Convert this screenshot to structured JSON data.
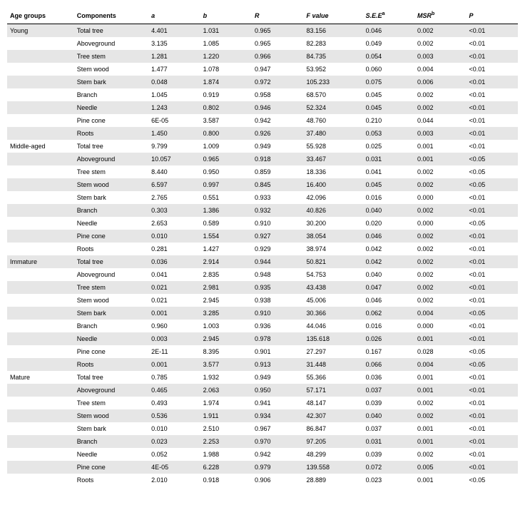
{
  "headers": {
    "age": "Age groups",
    "comp": "Components",
    "a": "a",
    "b": "b",
    "r": "R",
    "f": "F value",
    "see": "S.E.E",
    "see_sup": "a",
    "msr": "MSR",
    "msr_sup": "b",
    "p": "P"
  },
  "groups": [
    {
      "name": "Young",
      "rows": [
        {
          "comp": "Total tree",
          "a": "4.401",
          "b": "1.031",
          "r": "0.965",
          "f": "83.156",
          "see": "0.046",
          "msr": "0.002",
          "p": "<0.01"
        },
        {
          "comp": "Aboveground",
          "a": "3.135",
          "b": "1.085",
          "r": "0.965",
          "f": "82.283",
          "see": "0.049",
          "msr": "0.002",
          "p": "<0.01"
        },
        {
          "comp": "Tree stem",
          "a": "1.281",
          "b": "1.220",
          "r": "0.966",
          "f": "84.735",
          "see": "0.054",
          "msr": "0.003",
          "p": "<0.01"
        },
        {
          "comp": "Stem wood",
          "a": "1.477",
          "b": "1.078",
          "r": "0.947",
          "f": "53.952",
          "see": "0.060",
          "msr": "0.004",
          "p": "<0.01"
        },
        {
          "comp": "Stem bark",
          "a": "0.048",
          "b": "1.874",
          "r": "0.972",
          "f": "105.233",
          "see": "0.075",
          "msr": "0.006",
          "p": "<0.01"
        },
        {
          "comp": "Branch",
          "a": "1.045",
          "b": "0.919",
          "r": "0.958",
          "f": "68.570",
          "see": "0.045",
          "msr": "0.002",
          "p": "<0.01"
        },
        {
          "comp": "Needle",
          "a": "1.243",
          "b": "0.802",
          "r": "0.946",
          "f": "52.324",
          "see": "0.045",
          "msr": "0.002",
          "p": "<0.01"
        },
        {
          "comp": "Pine cone",
          "a": "6E-05",
          "b": "3.587",
          "r": "0.942",
          "f": "48.760",
          "see": "0.210",
          "msr": "0.044",
          "p": "<0.01"
        },
        {
          "comp": "Roots",
          "a": "1.450",
          "b": "0.800",
          "r": "0.926",
          "f": "37.480",
          "see": "0.053",
          "msr": "0.003",
          "p": "<0.01"
        }
      ]
    },
    {
      "name": "Middle-aged",
      "rows": [
        {
          "comp": "Total tree",
          "a": "9.799",
          "b": "1.009",
          "r": "0.949",
          "f": "55.928",
          "see": "0.025",
          "msr": "0.001",
          "p": "<0.01"
        },
        {
          "comp": "Aboveground",
          "a": "10.057",
          "b": "0.965",
          "r": "0.918",
          "f": "33.467",
          "see": "0.031",
          "msr": "0.001",
          "p": "<0.05"
        },
        {
          "comp": "Tree stem",
          "a": "8.440",
          "b": "0.950",
          "r": "0.859",
          "f": "18.336",
          "see": "0.041",
          "msr": "0.002",
          "p": "<0.05"
        },
        {
          "comp": "Stem wood",
          "a": "6.597",
          "b": "0.997",
          "r": "0.845",
          "f": "16.400",
          "see": "0.045",
          "msr": "0.002",
          "p": "<0.05"
        },
        {
          "comp": "Stem bark",
          "a": "2.765",
          "b": "0.551",
          "r": "0.933",
          "f": "42.096",
          "see": "0.016",
          "msr": "0.000",
          "p": "<0.01"
        },
        {
          "comp": "Branch",
          "a": "0.303",
          "b": "1.386",
          "r": "0.932",
          "f": "40.826",
          "see": "0.040",
          "msr": "0.002",
          "p": "<0.01"
        },
        {
          "comp": "Needle",
          "a": "2.653",
          "b": "0.589",
          "r": "0.910",
          "f": "30.200",
          "see": "0.020",
          "msr": "0.000",
          "p": "<0.05"
        },
        {
          "comp": "Pine cone",
          "a": "0.010",
          "b": "1.554",
          "r": "0.927",
          "f": "38.054",
          "see": "0.046",
          "msr": "0.002",
          "p": "<0.01"
        },
        {
          "comp": "Roots",
          "a": "0.281",
          "b": "1.427",
          "r": "0.929",
          "f": "38.974",
          "see": "0.042",
          "msr": "0.002",
          "p": "<0.01"
        }
      ]
    },
    {
      "name": "Immature",
      "rows": [
        {
          "comp": "Total tree",
          "a": "0.036",
          "b": "2.914",
          "r": "0.944",
          "f": "50.821",
          "see": "0.042",
          "msr": "0.002",
          "p": "<0.01"
        },
        {
          "comp": "Aboveground",
          "a": "0.041",
          "b": "2.835",
          "r": "0.948",
          "f": "54.753",
          "see": "0.040",
          "msr": "0.002",
          "p": "<0.01"
        },
        {
          "comp": "Tree stem",
          "a": "0.021",
          "b": "2.981",
          "r": "0.935",
          "f": "43.438",
          "see": "0.047",
          "msr": "0.002",
          "p": "<0.01"
        },
        {
          "comp": "Stem wood",
          "a": "0.021",
          "b": "2.945",
          "r": "0.938",
          "f": "45.006",
          "see": "0.046",
          "msr": "0.002",
          "p": "<0.01"
        },
        {
          "comp": "Stem bark",
          "a": "0.001",
          "b": "3.285",
          "r": "0.910",
          "f": "30.366",
          "see": "0.062",
          "msr": "0.004",
          "p": "<0.05"
        },
        {
          "comp": "Branch",
          "a": "0.960",
          "b": "1.003",
          "r": "0.936",
          "f": "44.046",
          "see": "0.016",
          "msr": "0.000",
          "p": "<0.01"
        },
        {
          "comp": "Needle",
          "a": "0.003",
          "b": "2.945",
          "r": "0.978",
          "f": "135.618",
          "see": "0.026",
          "msr": "0.001",
          "p": "<0.01"
        },
        {
          "comp": "Pine cone",
          "a": "2E-11",
          "b": "8.395",
          "r": "0.901",
          "f": "27.297",
          "see": "0.167",
          "msr": "0.028",
          "p": "<0.05"
        },
        {
          "comp": "Roots",
          "a": "0.001",
          "b": "3.577",
          "r": "0.913",
          "f": "31.448",
          "see": "0.066",
          "msr": "0.004",
          "p": "<0.05"
        }
      ]
    },
    {
      "name": "Mature",
      "rows": [
        {
          "comp": "Total tree",
          "a": "0.785",
          "b": "1.932",
          "r": "0.949",
          "f": "55.366",
          "see": "0.036",
          "msr": "0.001",
          "p": "<0.01"
        },
        {
          "comp": "Aboveground",
          "a": "0.465",
          "b": "2.063",
          "r": "0.950",
          "f": "57.171",
          "see": "0.037",
          "msr": "0.001",
          "p": "<0.01"
        },
        {
          "comp": "Tree stem",
          "a": "0.493",
          "b": "1.974",
          "r": "0.941",
          "f": "48.147",
          "see": "0.039",
          "msr": "0.002",
          "p": "<0.01"
        },
        {
          "comp": "Stem wood",
          "a": "0.536",
          "b": "1.911",
          "r": "0.934",
          "f": "42.307",
          "see": "0.040",
          "msr": "0.002",
          "p": "<0.01"
        },
        {
          "comp": "Stem bark",
          "a": "0.010",
          "b": "2.510",
          "r": "0.967",
          "f": "86.847",
          "see": "0.037",
          "msr": "0.001",
          "p": "<0.01"
        },
        {
          "comp": "Branch",
          "a": "0.023",
          "b": "2.253",
          "r": "0.970",
          "f": "97.205",
          "see": "0.031",
          "msr": "0.001",
          "p": "<0.01"
        },
        {
          "comp": "Needle",
          "a": "0.052",
          "b": "1.988",
          "r": "0.942",
          "f": "48.299",
          "see": "0.039",
          "msr": "0.002",
          "p": "<0.01"
        },
        {
          "comp": "Pine cone",
          "a": "4E-05",
          "b": "6.228",
          "r": "0.979",
          "f": "139.558",
          "see": "0.072",
          "msr": "0.005",
          "p": "<0.01"
        },
        {
          "comp": "Roots",
          "a": "2.010",
          "b": "0.918",
          "r": "0.906",
          "f": "28.889",
          "see": "0.023",
          "msr": "0.001",
          "p": "<0.05"
        }
      ]
    }
  ]
}
